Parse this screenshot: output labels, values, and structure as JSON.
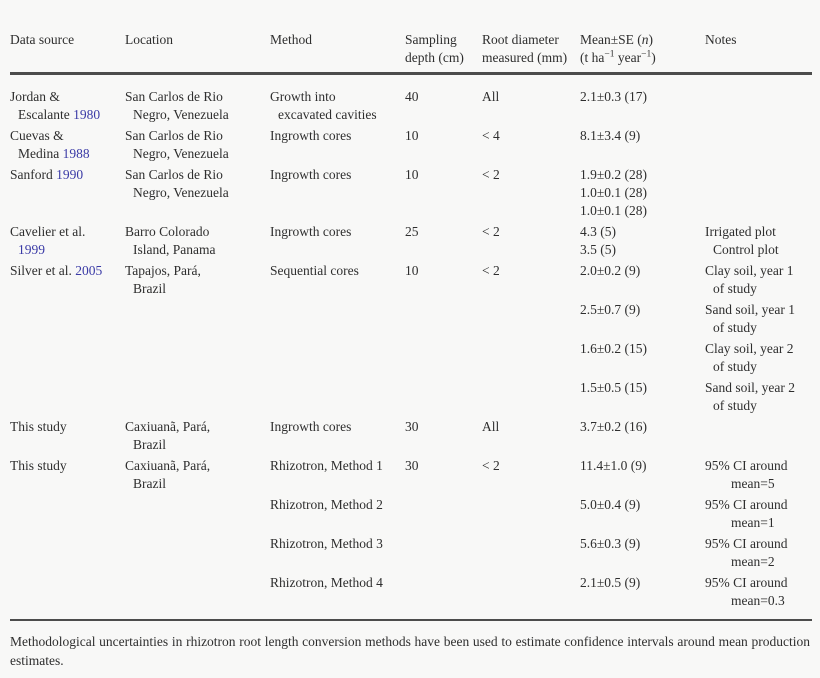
{
  "page": {
    "background": "#f8f8f7",
    "text_color": "#2e2e2e",
    "citation_color": "#3a3aa6",
    "rule_color": "#4c4c4c",
    "footnote": "Methodological uncertainties in rhizotron root length conversion methods have been used to estimate confidence intervals around mean production estimates."
  },
  "table": {
    "headers": [
      {
        "id": "data-source",
        "lines": [
          "Data source"
        ]
      },
      {
        "id": "location",
        "lines": [
          "Location"
        ]
      },
      {
        "id": "method",
        "lines": [
          "Method"
        ]
      },
      {
        "id": "sampling-depth",
        "lines": [
          "Sampling",
          "depth (cm)"
        ]
      },
      {
        "id": "root-diameter",
        "lines": [
          "Root diameter",
          "measured (mm)"
        ]
      },
      {
        "id": "mean-se",
        "lines": [
          {
            "seg": [
              "Mean±SE (",
              {
                "t": "n",
                "style": "italic"
              },
              ")"
            ]
          },
          {
            "seg": [
              "(t ha",
              {
                "t": "−1",
                "style": "sup"
              },
              " year",
              {
                "t": "−1",
                "style": "sup"
              },
              ")"
            ]
          }
        ]
      },
      {
        "id": "notes",
        "lines": [
          "Notes"
        ]
      }
    ],
    "rows": [
      {
        "blocks": [
          {
            "source": [
              "Jordan &",
              {
                "seg": [
                  "Escalante ",
                  {
                    "t": "1980",
                    "style": "year"
                  }
                ],
                "indent": 1
              }
            ],
            "location": [
              "San Carlos de Rio",
              {
                "t": "Negro, Venezuela",
                "indent": 1
              }
            ],
            "method": [
              "Growth into",
              {
                "t": "excavated cavities",
                "indent": 1
              }
            ],
            "depth": "40",
            "diameter": "All",
            "mean": [
              "2.1±0.3 (17)"
            ],
            "notes": []
          }
        ]
      },
      {
        "blocks": [
          {
            "source": [
              "Cuevas &",
              {
                "seg": [
                  "Medina ",
                  {
                    "t": "1988",
                    "style": "year"
                  }
                ],
                "indent": 1
              }
            ],
            "location": [
              "San Carlos de Rio",
              {
                "t": "Negro, Venezuela",
                "indent": 1
              }
            ],
            "method": [
              "Ingrowth cores"
            ],
            "depth": "10",
            "diameter": "< 4",
            "mean": [
              "8.1±3.4 (9)"
            ],
            "notes": []
          }
        ]
      },
      {
        "blocks": [
          {
            "source": [
              {
                "seg": [
                  "Sanford ",
                  {
                    "t": "1990",
                    "style": "year"
                  }
                ]
              }
            ],
            "location": [
              "San Carlos de Rio",
              {
                "t": "Negro, Venezuela",
                "indent": 1
              }
            ],
            "method": [
              "Ingrowth cores"
            ],
            "depth": "10",
            "diameter": "< 2",
            "mean": [
              "1.9±0.2 (28)",
              "1.0±0.1 (28)",
              "1.0±0.1 (28)"
            ],
            "notes": []
          }
        ]
      },
      {
        "blocks": [
          {
            "source": [
              "Cavelier et al.",
              {
                "seg": [
                  {
                    "t": "1999",
                    "style": "year"
                  }
                ],
                "indent": 1
              }
            ],
            "location": [
              "Barro Colorado",
              {
                "t": "Island, Panama",
                "indent": 1
              }
            ],
            "method": [
              "Ingrowth cores"
            ],
            "depth": "25",
            "diameter": "< 2",
            "mean": [
              "4.3 (5)",
              "3.5 (5)"
            ],
            "notes": [
              "Irrigated plot",
              {
                "t": "Control plot",
                "indent": 1
              }
            ]
          }
        ]
      },
      {
        "blocks": [
          {
            "source": [
              {
                "seg": [
                  "Silver et al. ",
                  {
                    "t": "2005",
                    "style": "year"
                  }
                ]
              }
            ],
            "location": [
              "Tapajos, Pará,",
              {
                "t": "Brazil",
                "indent": 1
              }
            ],
            "method": [
              "Sequential cores"
            ],
            "depth": "10",
            "diameter": "< 2",
            "mean": [
              "2.0±0.2 (9)"
            ],
            "notes": [
              "Clay soil, year 1",
              {
                "t": "of study",
                "indent": 1
              }
            ]
          },
          {
            "mean": [
              "2.5±0.7 (9)"
            ],
            "notes": [
              "Sand soil, year 1",
              {
                "t": "of study",
                "indent": 1
              }
            ]
          },
          {
            "mean": [
              "1.6±0.2 (15)"
            ],
            "notes": [
              "Clay soil, year 2",
              {
                "t": "of study",
                "indent": 1
              }
            ]
          },
          {
            "mean": [
              "1.5±0.5 (15)"
            ],
            "notes": [
              "Sand soil, year 2",
              {
                "t": "of study",
                "indent": 1
              }
            ]
          }
        ]
      },
      {
        "blocks": [
          {
            "source": [
              "This study"
            ],
            "location": [
              "Caxiuanã, Pará,",
              {
                "t": "Brazil",
                "indent": 1
              }
            ],
            "method": [
              "Ingrowth cores"
            ],
            "depth": "30",
            "diameter": "All",
            "mean": [
              "3.7±0.2 (16)"
            ],
            "notes": []
          }
        ]
      },
      {
        "blocks": [
          {
            "source": [
              "This study"
            ],
            "location": [
              "Caxiuanã, Pará,",
              {
                "t": "Brazil",
                "indent": 1
              }
            ],
            "method": [
              "Rhizotron, Method 1"
            ],
            "depth": "30",
            "diameter": "< 2",
            "mean": [
              "11.4±1.0 (9)"
            ],
            "notes": [
              "95% CI around",
              {
                "t": "mean=5",
                "indent": 2
              }
            ]
          },
          {
            "method": [
              "Rhizotron, Method 2"
            ],
            "mean": [
              "5.0±0.4 (9)"
            ],
            "notes": [
              "95% CI around",
              {
                "t": "mean=1",
                "indent": 2
              }
            ]
          },
          {
            "method": [
              "Rhizotron, Method 3"
            ],
            "mean": [
              "5.6±0.3 (9)"
            ],
            "notes": [
              "95% CI around",
              {
                "t": "mean=2",
                "indent": 2
              }
            ]
          },
          {
            "method": [
              "Rhizotron, Method 4"
            ],
            "mean": [
              "2.1±0.5 (9)"
            ],
            "notes": [
              "95% CI around",
              {
                "t": "mean=0.3",
                "indent": 2
              }
            ]
          }
        ]
      }
    ]
  }
}
